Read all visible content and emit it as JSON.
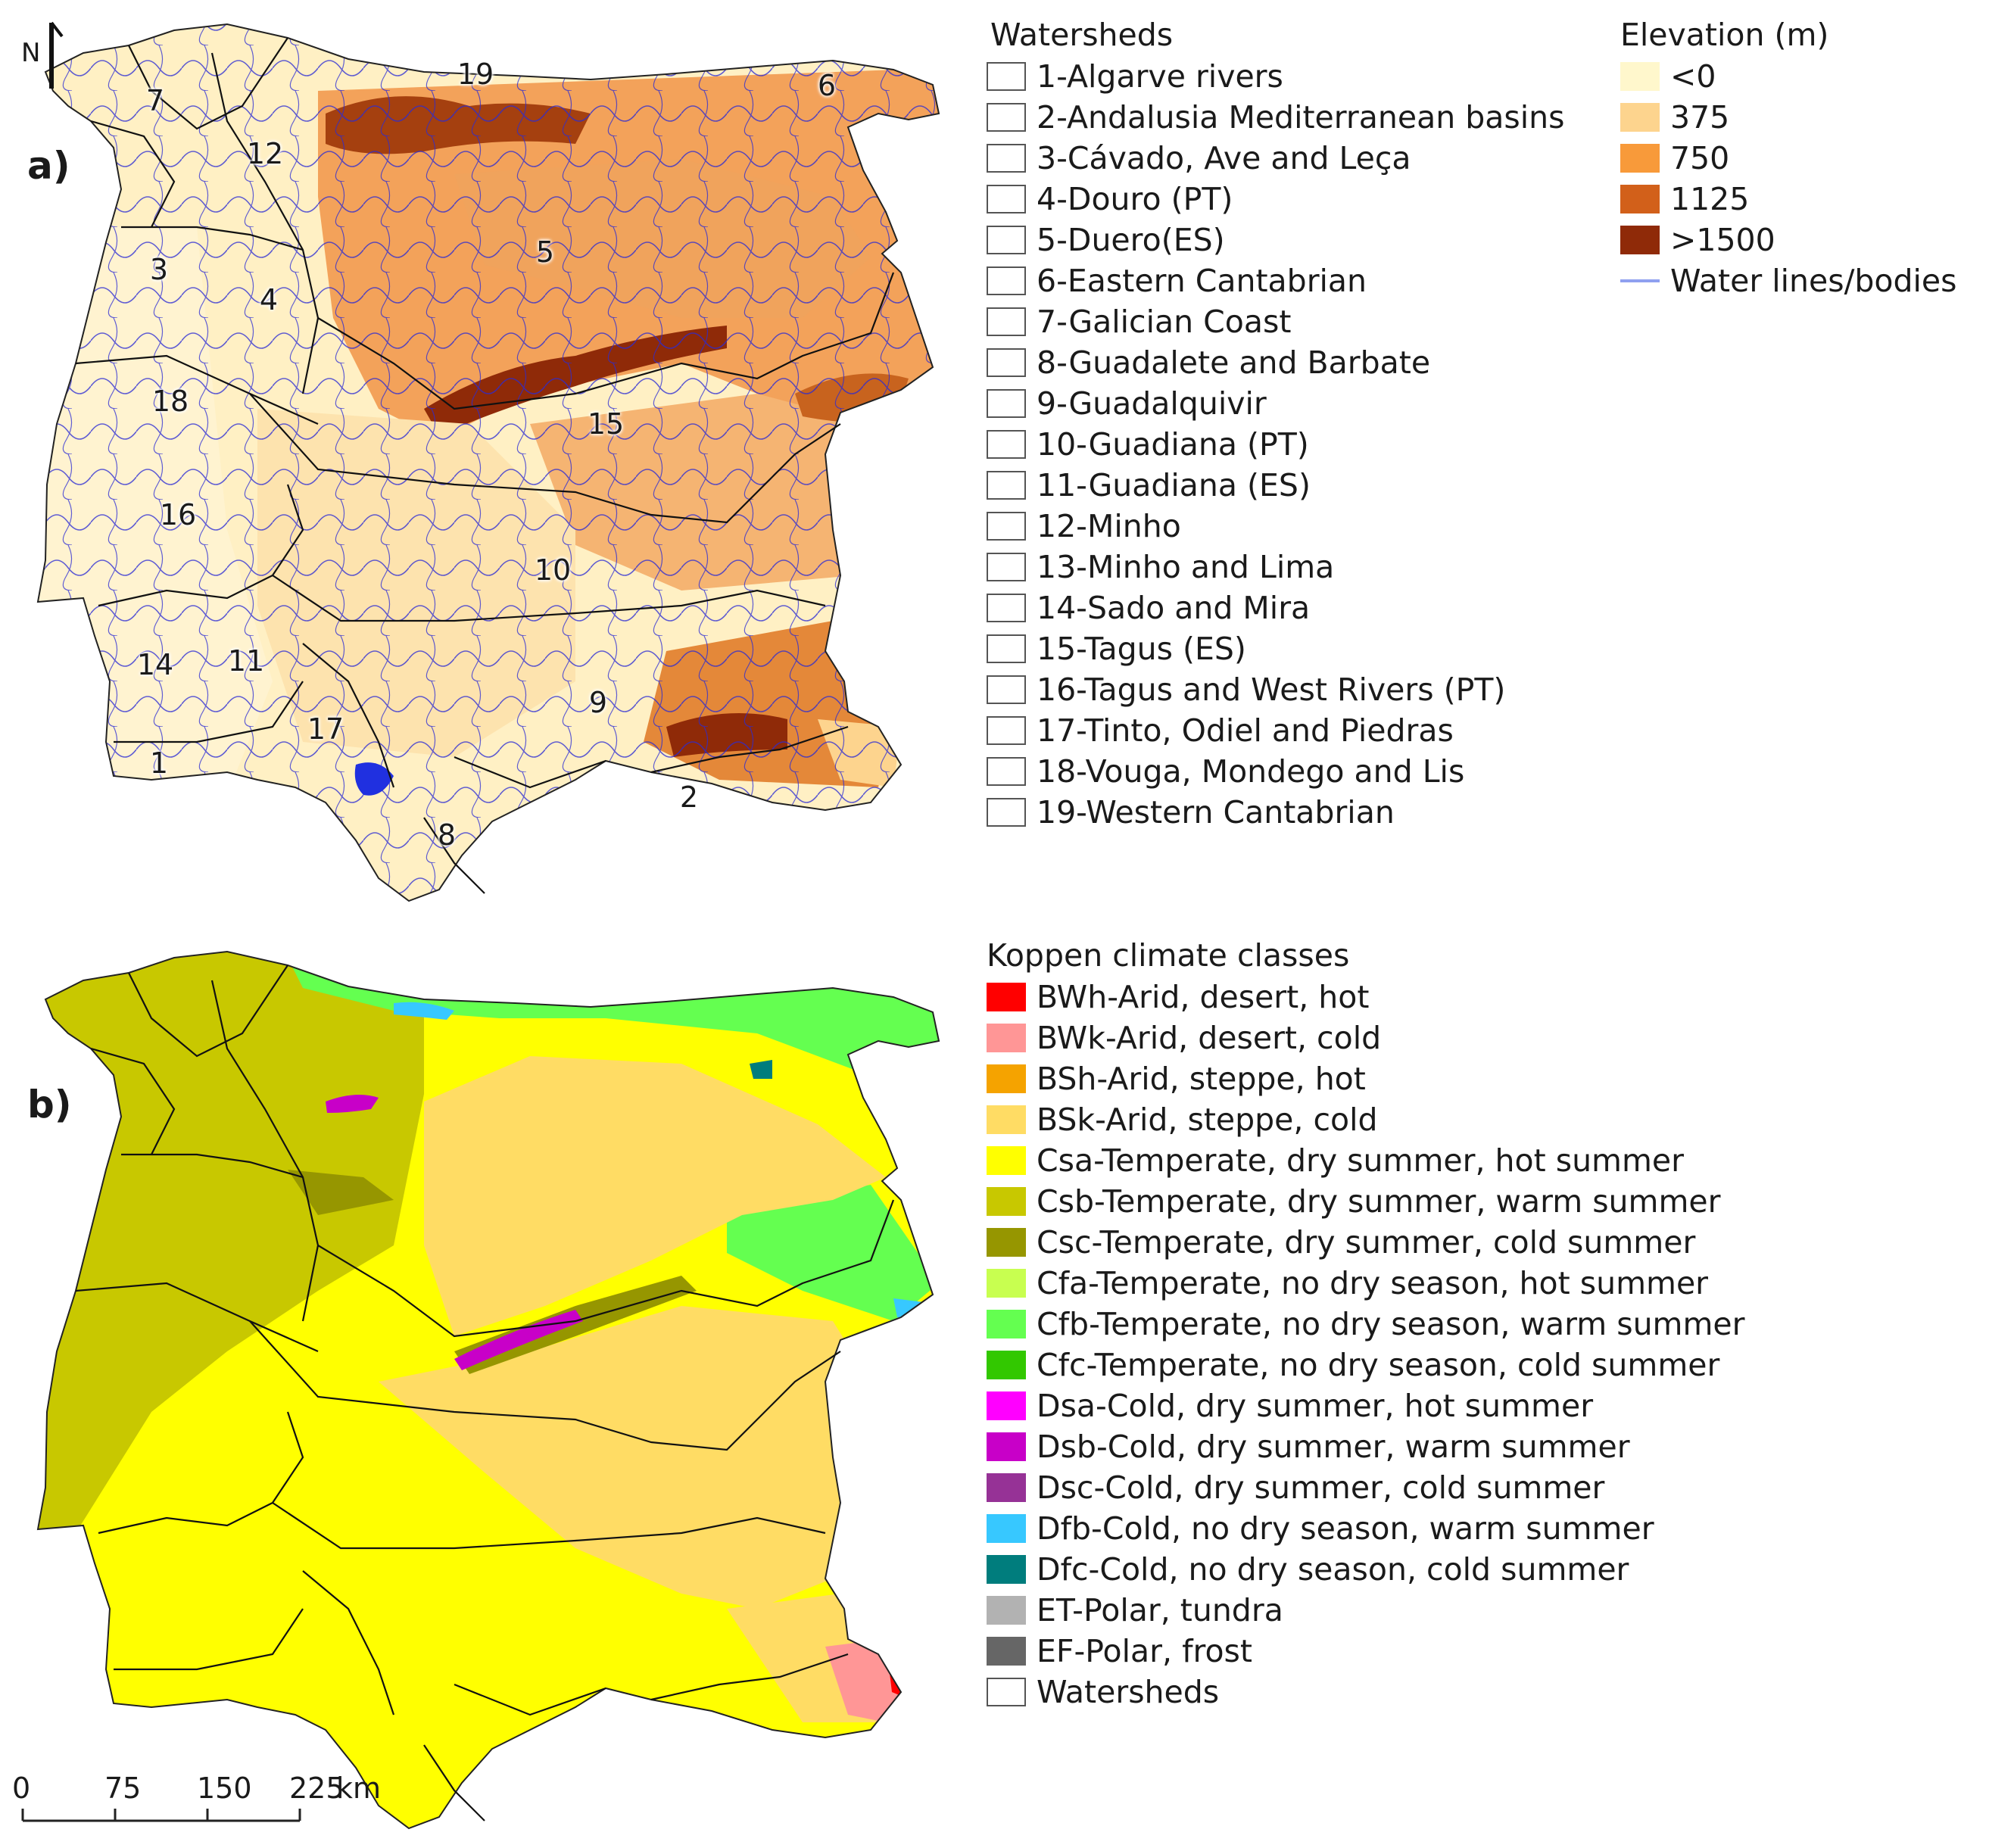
{
  "panel_a": {
    "label": "a)",
    "north": "N",
    "watersheds_title": "Watersheds",
    "watersheds": [
      "1-Algarve rivers",
      "2-Andalusia Mediterranean basins",
      "3-Cávado, Ave and Leça",
      "4-Douro (PT)",
      "5-Duero(ES)",
      "6-Eastern Cantabrian",
      "7-Galician Coast",
      "8-Guadalete and Barbate",
      "9-Guadalquivir",
      "10-Guadiana (PT)",
      "11-Guadiana (ES)",
      "12-Minho",
      "13-Minho and Lima",
      "14-Sado and Mira",
      "15-Tagus (ES)",
      "16-Tagus and West Rivers (PT)",
      "17-Tinto, Odiel and Piedras",
      "18-Vouga, Mondego and Lis",
      "19-Western Cantabrian"
    ],
    "map_numbers": [
      "1",
      "2",
      "3",
      "4",
      "5",
      "6",
      "7",
      "8",
      "9",
      "10",
      "11",
      "12",
      "14",
      "15",
      "16",
      "17",
      "18",
      "19"
    ],
    "elevation_title": "Elevation (m)",
    "elevation_classes": [
      {
        "label": "<0",
        "color": "#fff7cc"
      },
      {
        "label": "375",
        "color": "#fdd48e"
      },
      {
        "label": "750",
        "color": "#f89a3a"
      },
      {
        "label": "1125",
        "color": "#d2601a"
      },
      {
        "label": ">1500",
        "color": "#8f2a08"
      }
    ],
    "water_label": "Water lines/bodies",
    "water_color": "#8fa0f0"
  },
  "panel_b": {
    "label": "b)",
    "koppen_title": "Koppen climate classes",
    "koppen_classes": [
      {
        "label": "BWh-Arid, desert, hot",
        "color": "#ff0000"
      },
      {
        "label": "BWk-Arid, desert, cold",
        "color": "#ff9696"
      },
      {
        "label": "BSh-Arid, steppe, hot",
        "color": "#f5a300"
      },
      {
        "label": "BSk-Arid, steppe, cold",
        "color": "#ffdc64"
      },
      {
        "label": "Csa-Temperate, dry summer, hot summer",
        "color": "#ffff00"
      },
      {
        "label": "Csb-Temperate, dry summer, warm summer",
        "color": "#c8c800"
      },
      {
        "label": "Csc-Temperate, dry summer, cold summer",
        "color": "#969600"
      },
      {
        "label": "Cfa-Temperate, no dry season, hot summer",
        "color": "#c8ff50"
      },
      {
        "label": "Cfb-Temperate, no dry season, warm summer",
        "color": "#64ff50"
      },
      {
        "label": "Cfc-Temperate, no dry season, cold summer",
        "color": "#32c800"
      },
      {
        "label": "Dsa-Cold, dry summer, hot summer",
        "color": "#ff00ff"
      },
      {
        "label": "Dsb-Cold, dry summer, warm summer",
        "color": "#c800c8"
      },
      {
        "label": "Dsc-Cold, dry summer, cold summer",
        "color": "#963296"
      },
      {
        "label": "Dfb-Cold, no dry season, warm summer",
        "color": "#37c8ff"
      },
      {
        "label": "Dfc-Cold, no dry season, cold summer",
        "color": "#007d7d"
      },
      {
        "label": "ET-Polar, tundra",
        "color": "#b2b2b2"
      },
      {
        "label": "EF-Polar, frost",
        "color": "#666666"
      }
    ],
    "watersheds_label": "Watersheds"
  },
  "scale_bar": {
    "ticks": [
      "0",
      "75",
      "150",
      "225"
    ],
    "unit": "km"
  }
}
